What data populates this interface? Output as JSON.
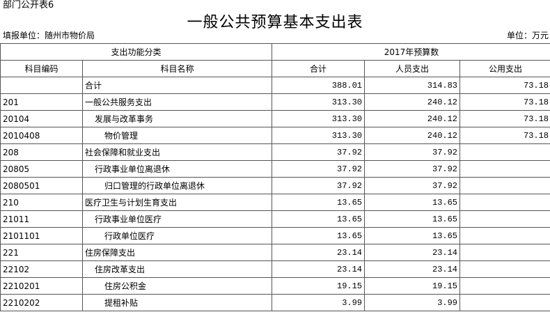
{
  "header": {
    "tag": "部门公开表6",
    "title": "一般公共预算基本支出表",
    "unit_left": "填报单位：随州市物价局",
    "unit_right": "单位：万元"
  },
  "table": {
    "group_headers": [
      "支出功能分类",
      "2017年预算数"
    ],
    "columns": [
      "科目编码",
      "科目名称",
      "合计",
      "人员支出",
      "公用支出"
    ],
    "rows": [
      [
        null,
        "合计",
        "388.01",
        "314.83",
        "73.18"
      ],
      [
        "201",
        "一般公共服务支出",
        "313.30",
        "240.12",
        "73.18"
      ],
      [
        "20104",
        "发展与改革事务",
        "313.30",
        "240.12",
        "73.18"
      ],
      [
        "2010408",
        "物价管理",
        "313.30",
        "240.12",
        "73.18"
      ],
      [
        "208",
        "社会保障和就业支出",
        "37.92",
        "37.92",
        null
      ],
      [
        "20805",
        "行政事业单位离退休",
        "37.92",
        "37.92",
        null
      ],
      [
        "2080501",
        "归口管理的行政单位离退休",
        "37.92",
        "37.92",
        null
      ],
      [
        "210",
        "医疗卫生与计划生育支出",
        "13.65",
        "13.65",
        null
      ],
      [
        "21011",
        "行政事业单位医疗",
        "13.65",
        "13.65",
        null
      ],
      [
        "2101101",
        "行政单位医疗",
        "13.65",
        "13.65",
        null
      ],
      [
        "221",
        "住房保障支出",
        "23.14",
        "23.14",
        null
      ],
      [
        "22102",
        "住房改革支出",
        "23.14",
        "23.14",
        null
      ],
      [
        "2210201",
        "住房公积金",
        "19.15",
        "19.15",
        null
      ],
      [
        "2210202",
        "提租补贴",
        "3.99",
        "3.99",
        null
      ]
    ]
  }
}
